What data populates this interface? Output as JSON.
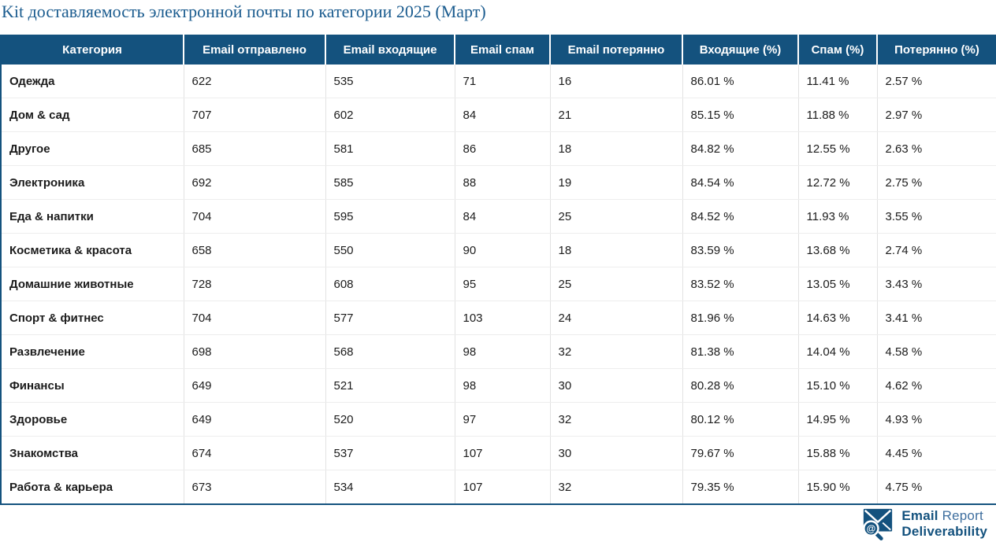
{
  "page": {
    "title": "Kit доставляемость электронной почты по категории 2025 (Март)"
  },
  "colors": {
    "header_bg": "#14527e",
    "header_text": "#ffffff",
    "title_text": "#1b5c8f",
    "body_text": "#1c1c1c",
    "brand_blue": "#14527e",
    "brand_light_blue": "#3f6f9f"
  },
  "table": {
    "columns": [
      "Категория",
      "Email отправлено",
      "Email входящие",
      "Email спам",
      "Email потерянно",
      "Входящие (%)",
      "Спам (%)",
      "Потерянно (%)"
    ],
    "rows": [
      [
        "Одежда",
        "622",
        "535",
        "71",
        "16",
        "86.01 %",
        "11.41 %",
        "2.57 %"
      ],
      [
        "Дом & сад",
        "707",
        "602",
        "84",
        "21",
        "85.15 %",
        "11.88 %",
        "2.97 %"
      ],
      [
        "Другое",
        "685",
        "581",
        "86",
        "18",
        "84.82 %",
        "12.55 %",
        "2.63 %"
      ],
      [
        "Электроника",
        "692",
        "585",
        "88",
        "19",
        "84.54 %",
        "12.72 %",
        "2.75 %"
      ],
      [
        "Еда & напитки",
        "704",
        "595",
        "84",
        "25",
        "84.52 %",
        "11.93 %",
        "3.55 %"
      ],
      [
        "Косметика & красота",
        "658",
        "550",
        "90",
        "18",
        "83.59 %",
        "13.68 %",
        "2.74 %"
      ],
      [
        "Домашние животные",
        "728",
        "608",
        "95",
        "25",
        "83.52 %",
        "13.05 %",
        "3.43 %"
      ],
      [
        "Спорт & фитнес",
        "704",
        "577",
        "103",
        "24",
        "81.96 %",
        "14.63 %",
        "3.41 %"
      ],
      [
        "Развлечение",
        "698",
        "568",
        "98",
        "32",
        "81.38 %",
        "14.04 %",
        "4.58 %"
      ],
      [
        "Финансы",
        "649",
        "521",
        "98",
        "30",
        "80.28 %",
        "15.10 %",
        "4.62 %"
      ],
      [
        "Здоровье",
        "649",
        "520",
        "97",
        "32",
        "80.12 %",
        "14.95 %",
        "4.93 %"
      ],
      [
        "Знакомства",
        "674",
        "537",
        "107",
        "30",
        "79.67 %",
        "15.88 %",
        "4.45 %"
      ],
      [
        "Работа & карьера",
        "673",
        "534",
        "107",
        "32",
        "79.35 %",
        "15.90 %",
        "4.75 %"
      ]
    ]
  },
  "footer_logo": {
    "line1_bold": "Email",
    "line1_light": " Report",
    "line2": "Deliverability",
    "at_symbol": "@"
  },
  "chart_data": {
    "type": "table",
    "title": "Kit доставляемость электронной почты по категории 2025 (Март)",
    "columns": [
      "Категория",
      "Email отправлено",
      "Email входящие",
      "Email спам",
      "Email потерянно",
      "Входящие (%)",
      "Спам (%)",
      "Потерянно (%)"
    ],
    "rows": [
      [
        "Одежда",
        622,
        535,
        71,
        16,
        86.01,
        11.41,
        2.57
      ],
      [
        "Дом & сад",
        707,
        602,
        84,
        21,
        85.15,
        11.88,
        2.97
      ],
      [
        "Другое",
        685,
        581,
        86,
        18,
        84.82,
        12.55,
        2.63
      ],
      [
        "Электроника",
        692,
        585,
        88,
        19,
        84.54,
        12.72,
        2.75
      ],
      [
        "Еда & напитки",
        704,
        595,
        84,
        25,
        84.52,
        11.93,
        3.55
      ],
      [
        "Косметика & красота",
        658,
        550,
        90,
        18,
        83.59,
        13.68,
        2.74
      ],
      [
        "Домашние животные",
        728,
        608,
        95,
        25,
        83.52,
        13.05,
        3.43
      ],
      [
        "Спорт & фитнес",
        704,
        577,
        103,
        24,
        81.96,
        14.63,
        3.41
      ],
      [
        "Развлечение",
        698,
        568,
        98,
        32,
        81.38,
        14.04,
        4.58
      ],
      [
        "Финансы",
        649,
        521,
        98,
        30,
        80.28,
        15.1,
        4.62
      ],
      [
        "Здоровье",
        649,
        520,
        97,
        32,
        80.12,
        14.95,
        4.93
      ],
      [
        "Знакомства",
        674,
        537,
        107,
        30,
        79.67,
        15.88,
        4.45
      ],
      [
        "Работа & карьера",
        673,
        534,
        107,
        32,
        79.35,
        15.9,
        4.75
      ]
    ]
  }
}
